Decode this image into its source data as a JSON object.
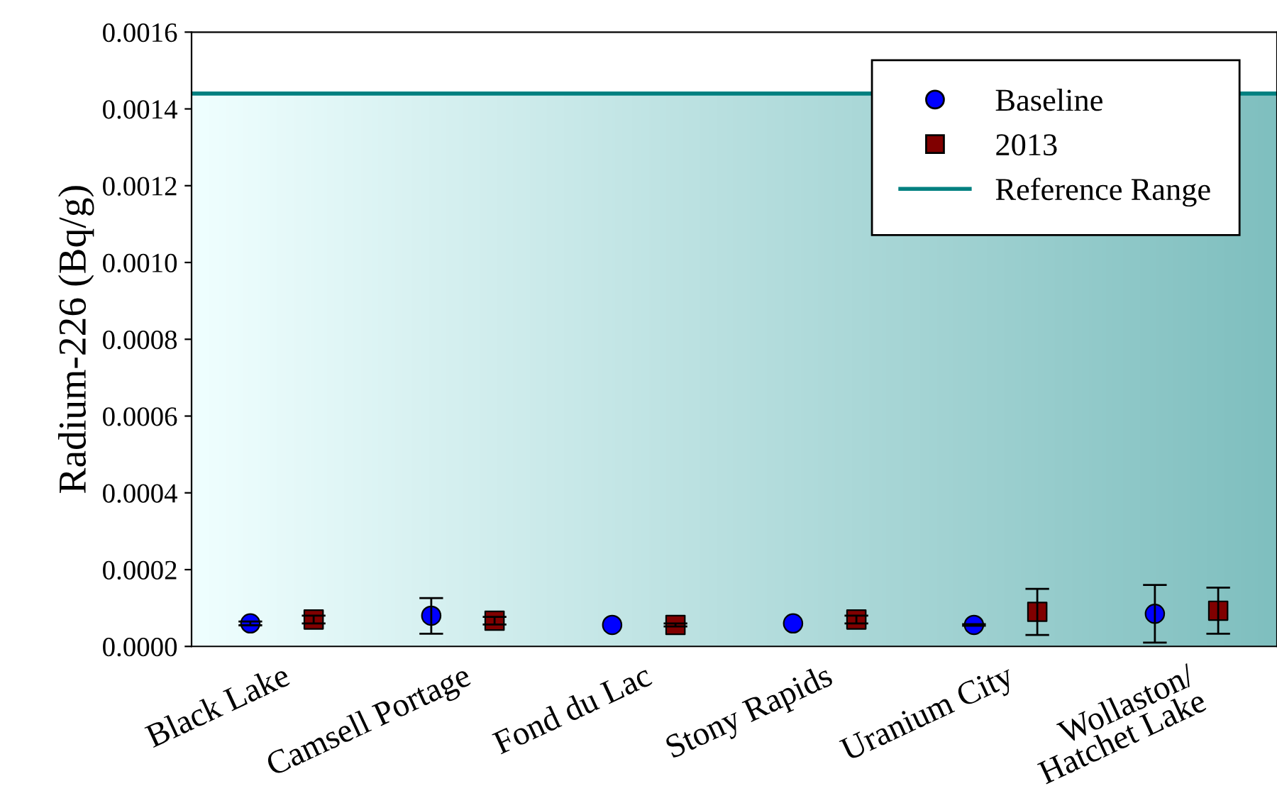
{
  "chart_data": {
    "type": "scatter",
    "ylabel": "Radium-226 (Bq/g)",
    "categories": [
      "Black Lake",
      "Camsell Portage",
      "Fond du Lac",
      "Stony Rapids",
      "Uranium City",
      "Wollaston/\nHatchet Lake"
    ],
    "series": [
      {
        "name": "Baseline",
        "color": "#0000ff",
        "marker": "circle",
        "values": [
          6e-05,
          8e-05,
          5.6e-05,
          6e-05,
          5.6e-05,
          8.5e-05
        ],
        "errors": [
          [
            5.5e-05,
            6.5e-05
          ],
          [
            3.3e-05,
            0.000126
          ],
          null,
          null,
          [
            5.4e-05,
            5.8e-05
          ],
          [
            1e-05,
            0.00016
          ]
        ]
      },
      {
        "name": "2013",
        "color": "#800000",
        "marker": "square",
        "values": [
          7e-05,
          6.7e-05,
          5.6e-05,
          7e-05,
          9e-05,
          9.3e-05
        ],
        "errors": [
          [
            6e-05,
            8e-05
          ],
          [
            5.7e-05,
            7.7e-05
          ],
          [
            5.2e-05,
            6e-05
          ],
          [
            6e-05,
            8e-05
          ],
          [
            3e-05,
            0.00015
          ],
          [
            3.3e-05,
            0.000153
          ]
        ]
      }
    ],
    "ylim": [
      0,
      0.0016
    ],
    "yticks": [
      {
        "value": 0,
        "label": "0.0000"
      },
      {
        "value": 0.0002,
        "label": "0.0002"
      },
      {
        "value": 0.0004,
        "label": "0.0004"
      },
      {
        "value": 0.0006,
        "label": "0.0006"
      },
      {
        "value": 0.0008,
        "label": "0.0008"
      },
      {
        "value": 0.001,
        "label": "0.0010"
      },
      {
        "value": 0.0012,
        "label": "0.0012"
      },
      {
        "value": 0.0014,
        "label": "0.0014"
      },
      {
        "value": 0.0016,
        "label": "0.0016"
      }
    ],
    "ref_lines": [
      {
        "axis": "y",
        "value": 0.00144,
        "label": "Reference Range",
        "color": "#008080"
      }
    ],
    "bands": [
      {
        "axis": "y",
        "from": 0,
        "to": 0.00144,
        "color": "#7fbfbf"
      }
    ],
    "grid": false,
    "legend": "top right"
  }
}
